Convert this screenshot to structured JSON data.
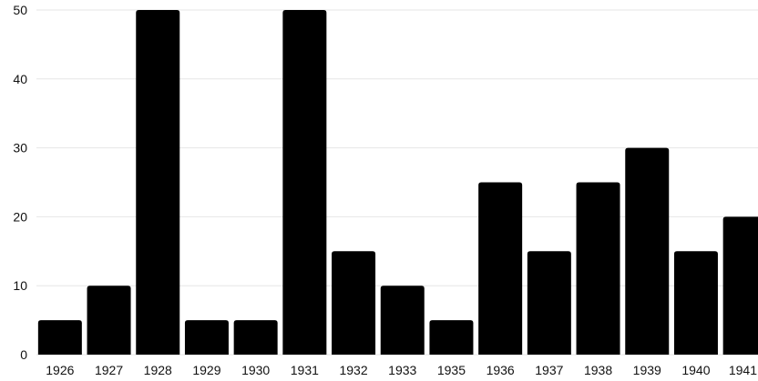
{
  "chart_data": {
    "type": "bar",
    "categories": [
      "1926",
      "1927",
      "1928",
      "1929",
      "1930",
      "1931",
      "1932",
      "1933",
      "1935",
      "1936",
      "1937",
      "1938",
      "1939",
      "1940",
      "1941"
    ],
    "values": [
      5,
      10,
      50,
      5,
      5,
      50,
      15,
      10,
      5,
      25,
      15,
      25,
      30,
      15,
      20
    ],
    "ylim": [
      0,
      50
    ],
    "yticks": [
      0,
      10,
      20,
      30,
      40,
      50
    ],
    "grid": true,
    "legend": false,
    "bar_color": "#000000",
    "grid_color": "#e6e6e6"
  }
}
